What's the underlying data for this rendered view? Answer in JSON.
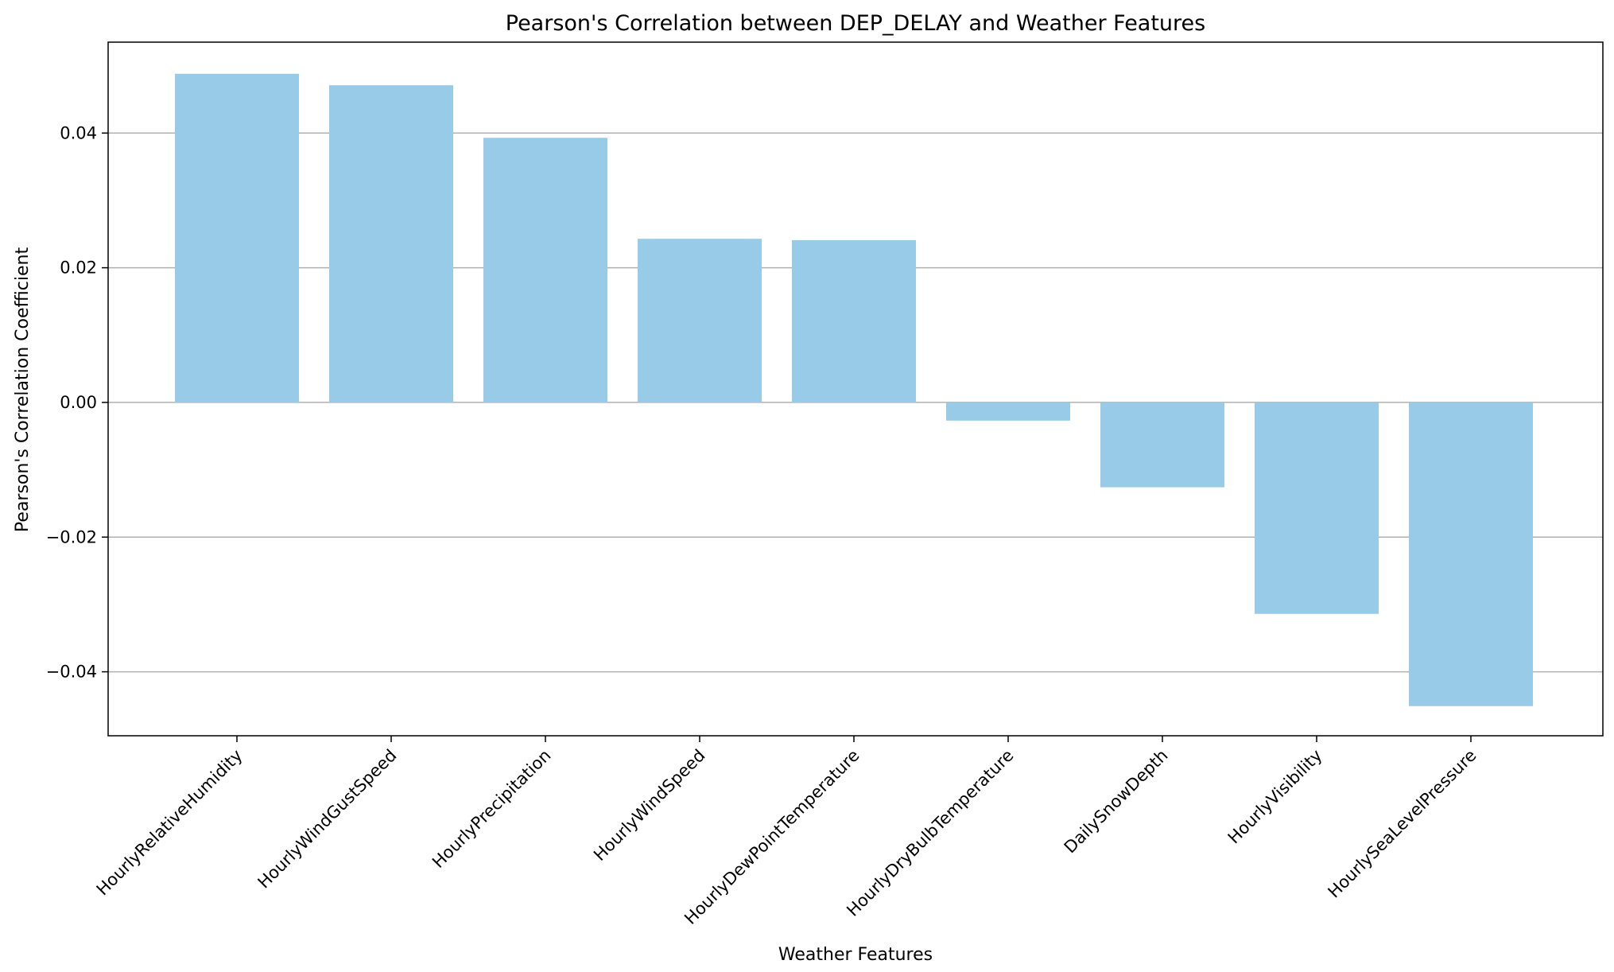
{
  "colors": {
    "bar": "#97cbe8",
    "grid": "#b0b0b0",
    "axis": "#000000"
  },
  "chart_data": {
    "type": "bar",
    "title": "Pearson's Correlation between DEP_DELAY and Weather Features",
    "xlabel": "Weather Features",
    "ylabel": "Pearson's Correlation Coefficient",
    "categories": [
      "HourlyRelativeHumidity",
      "HourlyWindGustSpeed",
      "HourlyPrecipitation",
      "HourlyWindSpeed",
      "HourlyDewPointTemperature",
      "HourlyDryBulbTemperature",
      "DailySnowDepth",
      "HourlyVisibility",
      "HourlySeaLevelPressure"
    ],
    "values": [
      0.0488,
      0.0471,
      0.0393,
      0.0243,
      0.0241,
      -0.0027,
      -0.0126,
      -0.0314,
      -0.0451
    ],
    "ylim": [
      -0.0495,
      0.0535
    ],
    "yticks": [
      -0.04,
      -0.02,
      0.0,
      0.02,
      0.04
    ],
    "ytick_labels": [
      "−0.04",
      "−0.02",
      "0.00",
      "0.02",
      "0.04"
    ],
    "grid": "y"
  }
}
